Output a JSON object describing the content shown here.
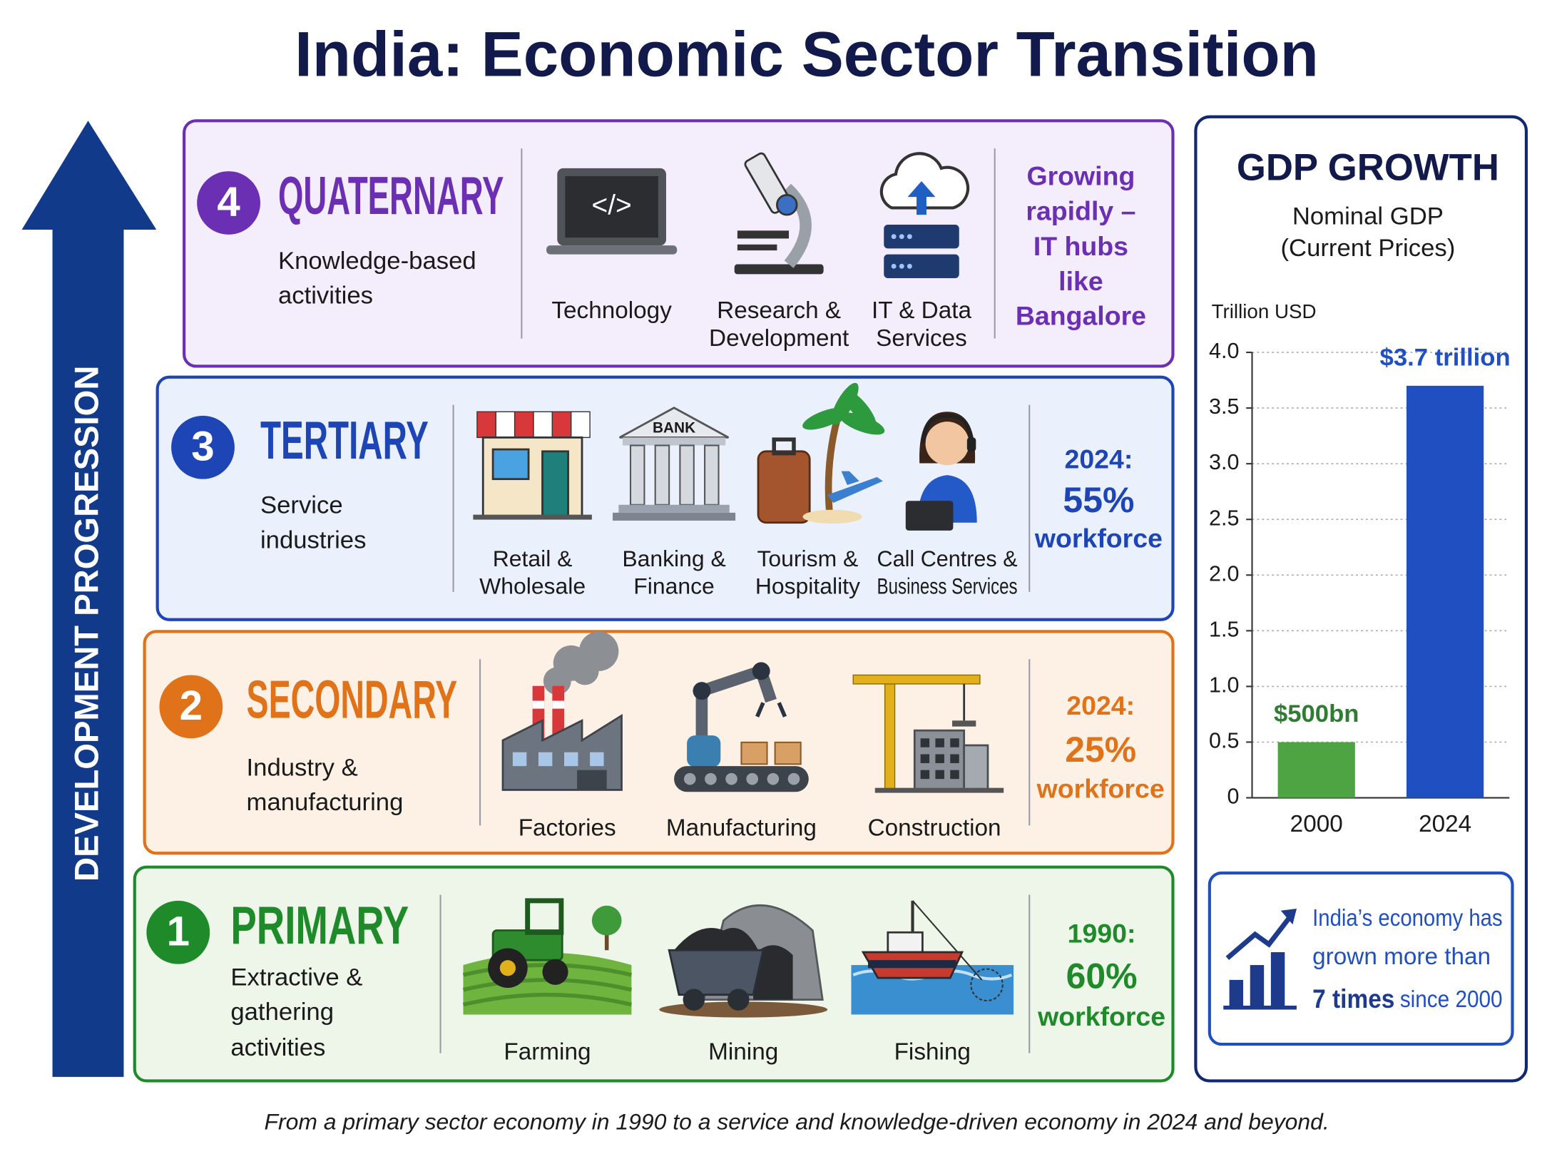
{
  "title": "India: Economic Sector Transition",
  "side_label": "DEVELOPMENT PROGRESSION",
  "sectors": [
    {
      "number": "4",
      "name": "QUATERNARY",
      "color": "#6b2fb3",
      "description": [
        "Knowledge-based",
        "activities"
      ],
      "items": [
        {
          "label": [
            "Technology"
          ],
          "icon_text": "</>"
        },
        {
          "label": [
            "Research &",
            "Development"
          ]
        },
        {
          "label": [
            "IT & Data",
            "Services"
          ]
        }
      ],
      "note": [
        "Growing",
        "rapidly –",
        "IT hubs",
        "like",
        "Bangalore"
      ]
    },
    {
      "number": "3",
      "name": "TERTIARY",
      "color": "#1d45b5",
      "description": [
        "Service",
        "industries"
      ],
      "items": [
        {
          "label": [
            "Retail &",
            "Wholesale"
          ]
        },
        {
          "label": [
            "Banking &",
            "Finance"
          ],
          "icon_text": "BANK"
        },
        {
          "label": [
            "Tourism &",
            "Hospitality"
          ]
        },
        {
          "label": [
            "Call Centres &",
            "Business Services"
          ]
        }
      ],
      "note": [
        "2024:",
        "55%",
        "workforce"
      ]
    },
    {
      "number": "2",
      "name": "SECONDARY",
      "color": "#e0731a",
      "description": [
        "Industry &",
        "manufacturing"
      ],
      "items": [
        {
          "label": [
            "Factories"
          ]
        },
        {
          "label": [
            "Manufacturing"
          ]
        },
        {
          "label": [
            "Construction"
          ]
        }
      ],
      "note": [
        "2024:",
        "25%",
        "workforce"
      ]
    },
    {
      "number": "1",
      "name": "PRIMARY",
      "color": "#1e8a2a",
      "description": [
        "Extractive &",
        "gathering",
        "activities"
      ],
      "items": [
        {
          "label": [
            "Farming"
          ]
        },
        {
          "label": [
            "Mining"
          ]
        },
        {
          "label": [
            "Fishing"
          ]
        }
      ],
      "note": [
        "1990:",
        "60%",
        "workforce"
      ]
    }
  ],
  "chart_data": {
    "type": "bar",
    "title": "GDP GROWTH",
    "subtitle": [
      "Nominal GDP",
      "(Current Prices)"
    ],
    "y_label": "Trillion USD",
    "categories": [
      "2000",
      "2024"
    ],
    "values": [
      0.5,
      3.7
    ],
    "value_labels": [
      "$500bn",
      "$3.7 trillion"
    ],
    "colors": [
      "#4ea343",
      "#1f4fc1"
    ],
    "label_colors": [
      "#2e7d32",
      "#1f4fc1"
    ],
    "ylim": [
      0,
      4
    ],
    "yticks": [
      0,
      0.5,
      {
        "value": 1,
        "label": "1.0"
      },
      1.5,
      {
        "value": 2,
        "label": "2.0"
      },
      2.5,
      {
        "value": 3,
        "label": "3.0"
      },
      3.5,
      {
        "value": 4,
        "label": "4.0"
      }
    ],
    "grid": true
  },
  "callout": {
    "lines": [
      "India’s economy has",
      "grown more than"
    ],
    "highlight": "7 times",
    "tail": "since 2000"
  },
  "footer": "From a primary sector economy in 1990 to a service and knowledge-driven economy in 2024 and beyond."
}
